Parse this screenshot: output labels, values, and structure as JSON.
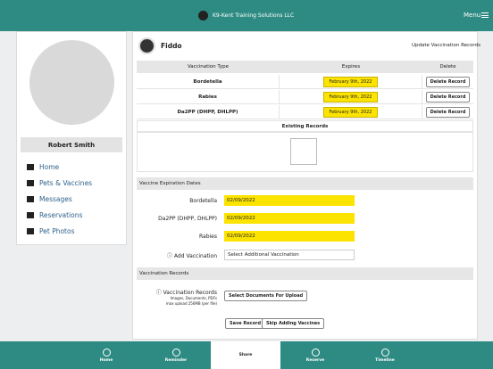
{
  "header": {
    "title": "K9-Kent Training Solutions LLC",
    "menu": "Menu"
  },
  "profile": {
    "name": "Robert Smith"
  },
  "nav": [
    "Home",
    "Pets & Vaccines",
    "Messages",
    "Reservations",
    "Pet Photos"
  ],
  "pet": {
    "name": "Fiddo",
    "action": "Update Vaccination Records"
  },
  "table": {
    "headers": [
      "Vaccination Type",
      "Expires",
      "Delete"
    ],
    "rows": [
      [
        "Bordetella",
        "February 9th, 2022",
        "Delete Record"
      ],
      [
        "Rabies",
        "February 9th, 2022",
        "Delete Record"
      ],
      [
        "Da2PP (DHPP, DHLPP)",
        "February 9th, 2022",
        "Delete Record"
      ]
    ],
    "existing": "Existing Records"
  },
  "expiration": {
    "title": "Vaccine Expiration Dates",
    "fields": [
      [
        "Bordetella",
        "02/09/2022"
      ],
      [
        "Da2PP (DHPP, DHLPP)",
        "02/09/2022"
      ],
      [
        "Rabies",
        "02/09/2022"
      ]
    ],
    "add_label": "Add Vaccination",
    "add_select": "Select Additional Vaccination"
  },
  "records": {
    "title": "Vaccination Records",
    "label": "Vaccination Records",
    "hint1": "Images, Documents, PDFs",
    "hint2": "max upload 256MB (per file)",
    "upload": "Select Documents For Upload"
  },
  "buttons": [
    "Save Record",
    "Skip Adding Vaccines"
  ],
  "tabs": [
    "Home",
    "Reminder",
    "Share",
    "Reserve",
    "Timeline"
  ]
}
